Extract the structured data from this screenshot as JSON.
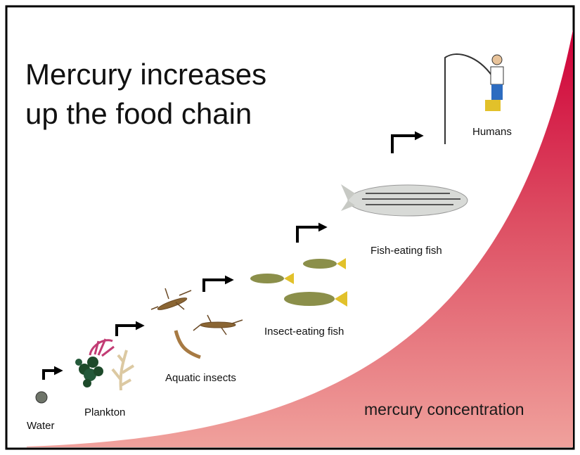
{
  "title_lines": [
    "Mercury increases",
    "up the food chain"
  ],
  "nodes": [
    {
      "label": "Water"
    },
    {
      "label": "Plankton"
    },
    {
      "label": "Aquatic insects"
    },
    {
      "label": "Insect-eating fish"
    },
    {
      "label": "Fish-eating fish"
    },
    {
      "label": "Humans"
    }
  ],
  "curve_label": "mercury concentration"
}
